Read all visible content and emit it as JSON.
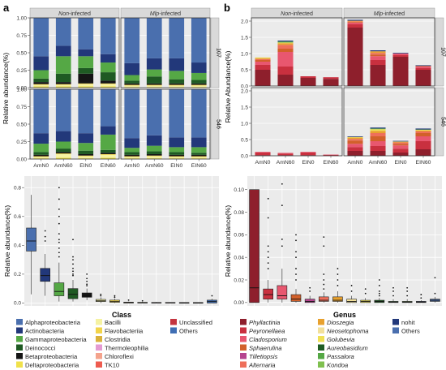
{
  "panel_labels": [
    "a",
    "b"
  ],
  "colors": {
    "Alphaproteobacteria": "#4a6fae",
    "Actinobacteria": "#22387a",
    "Gammaproteobacteria": "#55a845",
    "Deinococci": "#1f5a23",
    "Betaproteobacteria": "#151515",
    "Deltaproteobacteria": "#f0e14a",
    "Bacilli": "#f5f2a2",
    "Flavobacteriia": "#f2d44a",
    "Clostridia": "#d9b13a",
    "Thermoleophilia": "#e49ad2",
    "Chloroflexi": "#f4a38c",
    "TK10": "#ee5b4f",
    "Unclassified": "#c4343f",
    "Others": "#3f6eb4",
    "Phyllactinia": "#8e1f2c",
    "Peyronellaea": "#c9303f",
    "Cladosporium": "#e8576f",
    "Sphaerulina": "#d2602a",
    "Tilletiopsis": "#b5448f",
    "Alternaria": "#ee6f5a",
    "Dioszegia": "#e8a12e",
    "Neosetophoma": "#f2e09a",
    "Golubevia": "#efe054",
    "Aureobasidium": "#1e5c22",
    "Passalora": "#55a845",
    "Kondoa": "#7fc04f",
    "nohit": "#22387a",
    "fungi_Others": "#4a6fae"
  },
  "chart_data": [
    {
      "id": "a-top",
      "type": "bar",
      "stacked": true,
      "facets_cols": [
        "Non-infected",
        "Mlp-infected"
      ],
      "facets_rows": [
        "107",
        "546"
      ],
      "categories": [
        "AmN0",
        "AmN60",
        "EIN0",
        "EIN60"
      ],
      "ylabel": "Relative abundance(%)",
      "ylim": [
        0,
        1.0
      ],
      "yticks": [
        "0.00",
        "0.25",
        "0.50",
        "0.75",
        "1.00"
      ],
      "stack_order": [
        "Deltaproteobacteria",
        "Bacilli",
        "Flavobacteriia",
        "Betaproteobacteria",
        "Deinococci",
        "Gammaproteobacteria",
        "Actinobacteria",
        "Alphaproteobacteria"
      ],
      "data": {
        "107": {
          "Non-infected": [
            [
              0.02,
              0.02,
              0.01,
              0.03,
              0.05,
              0.12,
              0.2,
              0.55
            ],
            [
              0.02,
              0.02,
              0.01,
              0.03,
              0.12,
              0.25,
              0.15,
              0.4
            ],
            [
              0.02,
              0.03,
              0.01,
              0.14,
              0.08,
              0.17,
              0.1,
              0.45
            ],
            [
              0.02,
              0.03,
              0.01,
              0.04,
              0.12,
              0.14,
              0.12,
              0.52
            ]
          ],
          "Mlp-infected": [
            [
              0.01,
              0.02,
              0.01,
              0.02,
              0.04,
              0.08,
              0.17,
              0.65
            ],
            [
              0.01,
              0.02,
              0.01,
              0.02,
              0.1,
              0.1,
              0.16,
              0.58
            ],
            [
              0.01,
              0.02,
              0.01,
              0.02,
              0.06,
              0.12,
              0.18,
              0.58
            ],
            [
              0.01,
              0.02,
              0.01,
              0.02,
              0.05,
              0.1,
              0.15,
              0.64
            ]
          ]
        },
        "546": {
          "Non-infected": [
            [
              0.01,
              0.02,
              0.01,
              0.02,
              0.04,
              0.12,
              0.15,
              0.63
            ],
            [
              0.02,
              0.05,
              0.01,
              0.02,
              0.05,
              0.1,
              0.15,
              0.6
            ],
            [
              0.01,
              0.03,
              0.01,
              0.02,
              0.05,
              0.11,
              0.14,
              0.63
            ],
            [
              0.02,
              0.04,
              0.01,
              0.02,
              0.04,
              0.22,
              0.12,
              0.53
            ]
          ],
          "Mlp-infected": [
            [
              0.01,
              0.02,
              0.01,
              0.02,
              0.04,
              0.06,
              0.14,
              0.7
            ],
            [
              0.01,
              0.03,
              0.01,
              0.02,
              0.04,
              0.08,
              0.15,
              0.66
            ],
            [
              0.01,
              0.02,
              0.01,
              0.02,
              0.04,
              0.07,
              0.14,
              0.69
            ],
            [
              0.01,
              0.02,
              0.01,
              0.02,
              0.03,
              0.08,
              0.14,
              0.69
            ]
          ]
        }
      }
    },
    {
      "id": "b-top",
      "type": "bar",
      "stacked": true,
      "facets_cols": [
        "Non-infected",
        "Mlp-infected"
      ],
      "facets_rows": [
        "107",
        "546"
      ],
      "categories": [
        "AmN0",
        "AmN60",
        "EIN0",
        "EIN60"
      ],
      "ylabel": "Relative Abundance(%)",
      "ylim": [
        0,
        2.1
      ],
      "yticks": [
        "0.0",
        "0.5",
        "1.0",
        "1.5",
        "2.0"
      ],
      "stack_order": [
        "Phyllactinia",
        "Peyronellaea",
        "Cladosporium",
        "Sphaerulina",
        "Alternaria",
        "Dioszegia",
        "Golubevia",
        "Passalora",
        "nohit"
      ],
      "data": {
        "107": {
          "Non-infected": [
            [
              0.5,
              0.15,
              0.1,
              0.05,
              0.03,
              0.03,
              0.02,
              0.0,
              0.0
            ],
            [
              0.35,
              0.25,
              0.45,
              0.1,
              0.12,
              0.05,
              0.02,
              0.03,
              0.03
            ],
            [
              0.25,
              0.05,
              0.0,
              0.0,
              0.0,
              0.0,
              0.0,
              0.0,
              0.0
            ],
            [
              0.22,
              0.05,
              0.0,
              0.0,
              0.0,
              0.0,
              0.0,
              0.0,
              0.0
            ]
          ],
          "Mlp-infected": [
            [
              1.8,
              0.1,
              0.05,
              0.02,
              0.02,
              0.02,
              0.0,
              0.0,
              0.03
            ],
            [
              0.65,
              0.15,
              0.12,
              0.05,
              0.05,
              0.05,
              0.0,
              0.0,
              0.03
            ],
            [
              0.9,
              0.05,
              0.05,
              0.0,
              0.0,
              0.0,
              0.0,
              0.0,
              0.02
            ],
            [
              0.5,
              0.05,
              0.05,
              0.02,
              0.0,
              0.0,
              0.0,
              0.0,
              0.02
            ]
          ]
        },
        "546": {
          "Non-infected": [
            [
              0.02,
              0.08,
              0.02,
              0.0,
              0.0,
              0.0,
              0.0,
              0.0,
              0.0
            ],
            [
              0.02,
              0.05,
              0.02,
              0.0,
              0.0,
              0.0,
              0.0,
              0.0,
              0.0
            ],
            [
              0.02,
              0.08,
              0.02,
              0.0,
              0.0,
              0.0,
              0.0,
              0.0,
              0.0
            ],
            [
              0.01,
              0.02,
              0.01,
              0.0,
              0.0,
              0.0,
              0.0,
              0.0,
              0.0
            ]
          ],
          "Mlp-infected": [
            [
              0.15,
              0.12,
              0.1,
              0.1,
              0.05,
              0.04,
              0.02,
              0.0,
              0.02
            ],
            [
              0.15,
              0.15,
              0.15,
              0.15,
              0.1,
              0.07,
              0.05,
              0.02,
              0.03
            ],
            [
              0.1,
              0.12,
              0.1,
              0.05,
              0.04,
              0.02,
              0.01,
              0.0,
              0.02
            ],
            [
              0.2,
              0.25,
              0.15,
              0.1,
              0.05,
              0.03,
              0.02,
              0.01,
              0.03
            ]
          ]
        }
      }
    },
    {
      "id": "a-box",
      "type": "box",
      "xlabel": "Class",
      "ylabel": "Relative abundance(%)",
      "ylim": [
        -0.02,
        0.88
      ],
      "yticks": [
        "0.0",
        "0.2",
        "0.4",
        "0.6",
        "0.8"
      ],
      "boxes": [
        {
          "name": "Alphaproteobacteria",
          "min": 0.06,
          "q1": 0.36,
          "median": 0.43,
          "q3": 0.52,
          "max": 0.75,
          "outliers": []
        },
        {
          "name": "Actinobacteria",
          "min": 0.05,
          "q1": 0.15,
          "median": 0.19,
          "q3": 0.24,
          "max": 0.34,
          "outliers": [
            0.5,
            0.46,
            0.43
          ]
        },
        {
          "name": "Gammaproteobacteria",
          "min": 0.01,
          "q1": 0.05,
          "median": 0.08,
          "q3": 0.14,
          "max": 0.28,
          "outliers": [
            0.8,
            0.72,
            0.65,
            0.6,
            0.55,
            0.48,
            0.44,
            0.42,
            0.38,
            0.35,
            0.32
          ]
        },
        {
          "name": "Deinococci",
          "min": 0.01,
          "q1": 0.03,
          "median": 0.06,
          "q3": 0.1,
          "max": 0.16,
          "outliers": [
            0.44,
            0.32,
            0.3,
            0.27,
            0.24,
            0.22,
            0.2,
            0.19
          ]
        },
        {
          "name": "Betaproteobacteria",
          "min": 0.02,
          "q1": 0.04,
          "median": 0.05,
          "q3": 0.07,
          "max": 0.1,
          "outliers": [
            0.2,
            0.17,
            0.15,
            0.13,
            0.12
          ]
        },
        {
          "name": "Bacilli",
          "min": 0.0,
          "q1": 0.01,
          "median": 0.015,
          "q3": 0.025,
          "max": 0.04,
          "outliers": [
            0.06,
            0.05
          ]
        },
        {
          "name": "Flavobacteriia",
          "min": 0.0,
          "q1": 0.005,
          "median": 0.01,
          "q3": 0.02,
          "max": 0.03,
          "outliers": [
            0.05,
            0.04
          ]
        },
        {
          "name": "Clostridia",
          "min": 0.0,
          "q1": 0.0,
          "median": 0.003,
          "q3": 0.006,
          "max": 0.01,
          "outliers": [
            0.02
          ]
        },
        {
          "name": "Deltaproteobacteria",
          "min": 0.0,
          "q1": 0.0,
          "median": 0.002,
          "q3": 0.005,
          "max": 0.008,
          "outliers": [
            0.015
          ]
        },
        {
          "name": "Thermoleophilia",
          "min": 0.0,
          "q1": 0.0,
          "median": 0.002,
          "q3": 0.004,
          "max": 0.007,
          "outliers": []
        },
        {
          "name": "Chloroflexi",
          "min": 0.0,
          "q1": 0.0,
          "median": 0.002,
          "q3": 0.004,
          "max": 0.006,
          "outliers": []
        },
        {
          "name": "TK10",
          "min": 0.0,
          "q1": 0.0,
          "median": 0.002,
          "q3": 0.003,
          "max": 0.005,
          "outliers": []
        },
        {
          "name": "Unclassified",
          "min": 0.0,
          "q1": 0.0,
          "median": 0.002,
          "q3": 0.003,
          "max": 0.005,
          "outliers": []
        },
        {
          "name": "Others",
          "min": 0.0,
          "q1": 0.0,
          "median": 0.01,
          "q3": 0.02,
          "max": 0.03,
          "outliers": [
            0.05
          ]
        }
      ]
    },
    {
      "id": "b-box",
      "type": "box",
      "xlabel": "Genus",
      "ylabel": "Relative abundance(%)",
      "ylim": [
        -0.003,
        0.112
      ],
      "yticks": [
        "0.00",
        "0.02",
        "0.04",
        "0.06",
        "0.08",
        "0.10"
      ],
      "boxes": [
        {
          "name": "Phyllactinia",
          "min": 0.0,
          "q1": 0.0,
          "median": 0.013,
          "q3": 0.1,
          "max": 0.1,
          "outliers": []
        },
        {
          "name": "Peyronellaea",
          "min": 0.0,
          "q1": 0.003,
          "median": 0.007,
          "q3": 0.012,
          "max": 0.02,
          "outliers": [
            0.03,
            0.035,
            0.04,
            0.045,
            0.05,
            0.075,
            0.092
          ]
        },
        {
          "name": "Cladosporium",
          "min": 0.0,
          "q1": 0.003,
          "median": 0.006,
          "q3": 0.015,
          "max": 0.03,
          "outliers": [
            0.05,
            0.056,
            0.086,
            0.105
          ]
        },
        {
          "name": "Sphaerulina",
          "min": 0.0,
          "q1": 0.001,
          "median": 0.003,
          "q3": 0.007,
          "max": 0.012,
          "outliers": [
            0.02,
            0.025,
            0.03,
            0.04,
            0.045,
            0.055,
            0.06
          ]
        },
        {
          "name": "Tilletiopsis",
          "min": 0.0,
          "q1": 0.0,
          "median": 0.001,
          "q3": 0.003,
          "max": 0.006,
          "outliers": [
            0.01,
            0.013
          ]
        },
        {
          "name": "Alternaria",
          "min": 0.0,
          "q1": 0.001,
          "median": 0.002,
          "q3": 0.005,
          "max": 0.009,
          "outliers": [
            0.012,
            0.016,
            0.02,
            0.025,
            0.05,
            0.058
          ]
        },
        {
          "name": "Dioszegia",
          "min": 0.0,
          "q1": 0.001,
          "median": 0.002,
          "q3": 0.005,
          "max": 0.01,
          "outliers": [
            0.015,
            0.02,
            0.025,
            0.03
          ]
        },
        {
          "name": "Neosetophoma",
          "min": 0.0,
          "q1": 0.0,
          "median": 0.001,
          "q3": 0.003,
          "max": 0.006,
          "outliers": [
            0.01,
            0.015
          ]
        },
        {
          "name": "Golubevia",
          "min": 0.0,
          "q1": 0.0,
          "median": 0.001,
          "q3": 0.002,
          "max": 0.004,
          "outliers": [
            0.008,
            0.012
          ]
        },
        {
          "name": "Aureobasidium",
          "min": 0.0,
          "q1": 0.0,
          "median": 0.001,
          "q3": 0.002,
          "max": 0.004,
          "outliers": [
            0.006,
            0.008,
            0.01,
            0.015,
            0.02
          ]
        },
        {
          "name": "Passalora",
          "min": 0.0,
          "q1": 0.0,
          "median": 0.0005,
          "q3": 0.001,
          "max": 0.003,
          "outliers": [
            0.006,
            0.01,
            0.013
          ]
        },
        {
          "name": "Kondoa",
          "min": 0.0,
          "q1": 0.0,
          "median": 0.0005,
          "q3": 0.001,
          "max": 0.003,
          "outliers": [
            0.006,
            0.01,
            0.013
          ]
        },
        {
          "name": "nohit",
          "min": 0.0,
          "q1": 0.0,
          "median": 0.0005,
          "q3": 0.001,
          "max": 0.002,
          "outliers": [
            0.004,
            0.007
          ]
        },
        {
          "name": "Others",
          "min": 0.0,
          "q1": 0.001,
          "median": 0.002,
          "q3": 0.003,
          "max": 0.005,
          "outliers": [
            0.008,
            0.022
          ]
        }
      ]
    }
  ],
  "legend_a": {
    "title": "Class",
    "columns": [
      [
        "Alphaproteobacteria",
        "Actinobacteria",
        "Gammaproteobacteria",
        "Deinococci",
        "Betaproteobacteria",
        "Deltaproteobacteria"
      ],
      [
        "Bacilli",
        "Flavobacteriia",
        "Clostridia",
        "Thermoleophilia",
        "Chloroflexi",
        "TK10"
      ],
      [
        "Unclassified",
        "Others"
      ]
    ]
  },
  "legend_b": {
    "title": "Genus",
    "columns": [
      [
        "Phyllactinia",
        "Peyronellaea",
        "Cladosporium",
        "Sphaerulina",
        "Tilletiopsis",
        "Alternaria"
      ],
      [
        "Dioszegia",
        "Neosetophoma",
        "Golubevia",
        "Aureobasidium",
        "Passalora",
        "Kondoa"
      ],
      [
        "nohit",
        "Others"
      ]
    ],
    "italic": [
      "Phyllactinia",
      "Peyronellaea",
      "Cladosporium",
      "Sphaerulina",
      "Tilletiopsis",
      "Alternaria",
      "Dioszegia",
      "Neosetophoma",
      "Golubevia",
      "Aureobasidium",
      "Passalora",
      "Kondoa"
    ]
  }
}
